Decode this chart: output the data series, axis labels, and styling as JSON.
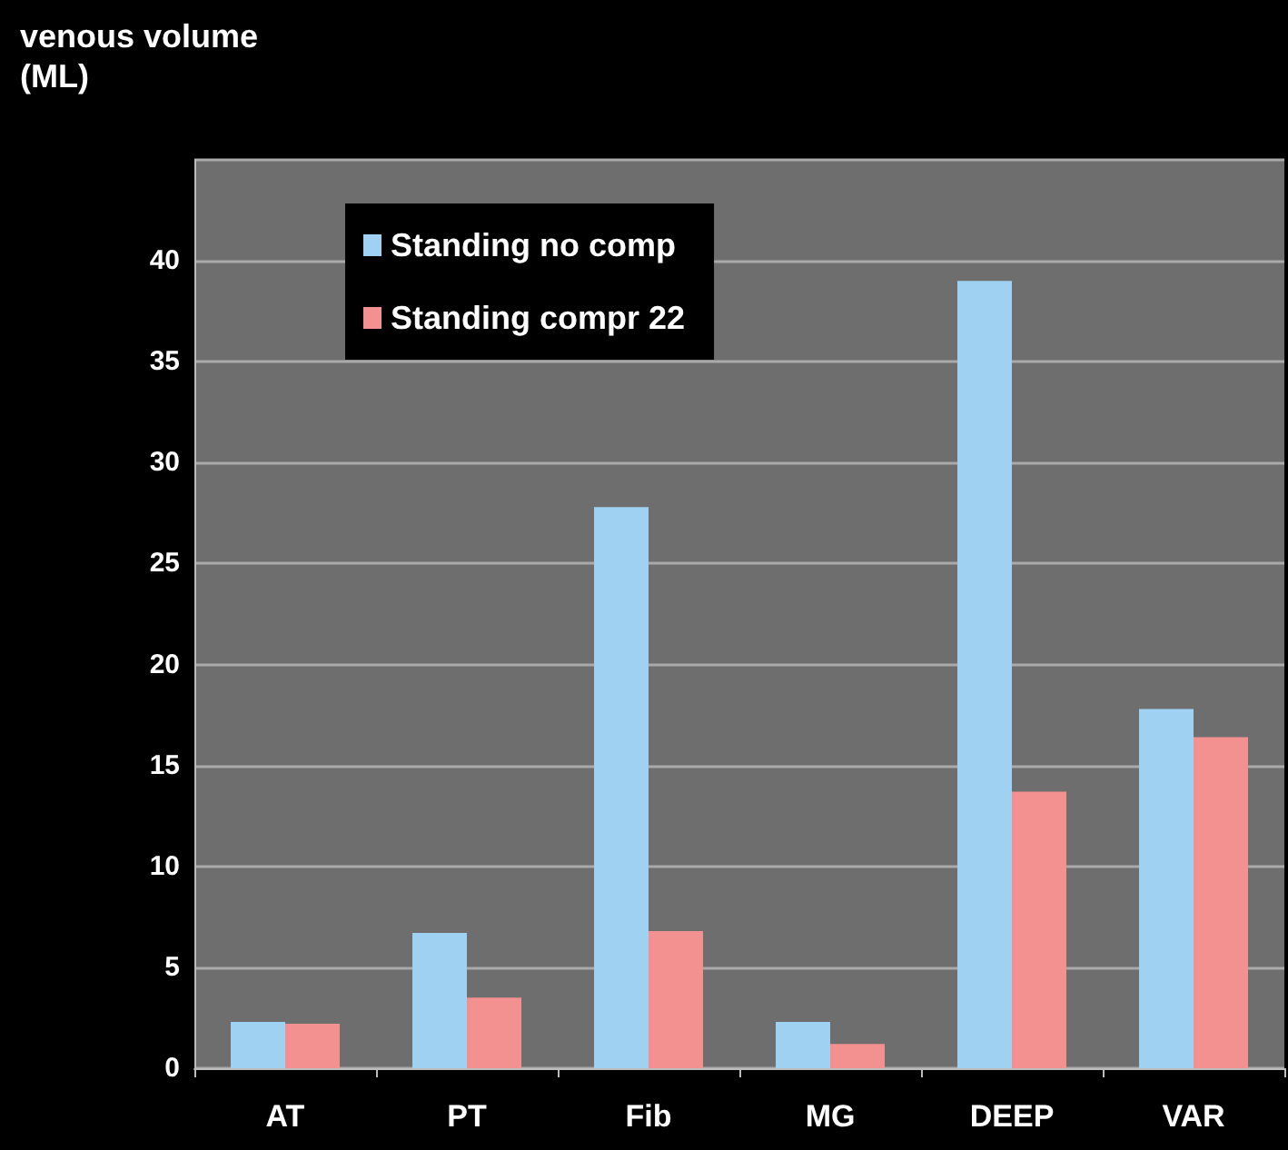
{
  "chart_data": {
    "type": "bar",
    "ylabel": "venous volume\n(ML)",
    "categories": [
      "AT",
      "PT",
      "Fib",
      "MG",
      "DEEP",
      "VAR"
    ],
    "series": [
      {
        "name": "Standing no comp",
        "color": "#9fd2f2",
        "values": [
          2.3,
          6.7,
          27.8,
          2.3,
          39,
          17.8
        ]
      },
      {
        "name": "Standing compr 22",
        "color": "#f2918f",
        "values": [
          2.2,
          3.5,
          6.8,
          1.2,
          13.7,
          16.4
        ]
      }
    ],
    "ylim": [
      0,
      45
    ],
    "yticks": [
      0,
      5,
      10,
      15,
      20,
      25,
      30,
      35,
      40,
      {
        "value": 45,
        "label": null
      }
    ],
    "grid": "y",
    "legend": "top left"
  }
}
